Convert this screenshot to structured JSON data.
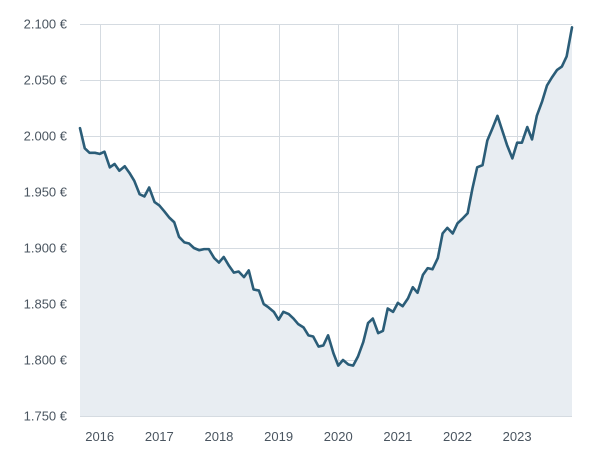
{
  "chart_data": {
    "type": "area",
    "title": "",
    "xlabel": "",
    "ylabel": "",
    "ylim": [
      1750,
      2100
    ],
    "y_ticks": [
      1750,
      1800,
      1850,
      1900,
      1950,
      2000,
      2050,
      2100
    ],
    "y_tick_labels": [
      "1.750 €",
      "1.800 €",
      "1.850 €",
      "1.900 €",
      "1.950 €",
      "2.000 €",
      "2.050 €",
      "2.100 €"
    ],
    "x_ticks": [
      2016,
      2017,
      2018,
      2019,
      2020,
      2021,
      2022,
      2023
    ],
    "x_tick_labels": [
      "2016",
      "2017",
      "2018",
      "2019",
      "2020",
      "2021",
      "2022",
      "2023"
    ],
    "xlim": [
      2015.67,
      2023.92
    ],
    "grid": true,
    "colors": {
      "line": "#2b5d78",
      "fill": "#e8edf2",
      "grid": "#d5dbe1",
      "text": "#4a5560"
    },
    "series": [
      {
        "x": [
          2015.67,
          2015.75,
          2015.83,
          2015.92,
          2016.0,
          2016.08,
          2016.17,
          2016.25,
          2016.33,
          2016.42,
          2016.5,
          2016.58,
          2016.67,
          2016.75,
          2016.83,
          2016.92,
          2017.0,
          2017.08,
          2017.17,
          2017.25,
          2017.33,
          2017.42,
          2017.5,
          2017.58,
          2017.67,
          2017.75,
          2017.83,
          2017.92,
          2018.0,
          2018.08,
          2018.17,
          2018.25,
          2018.33,
          2018.42,
          2018.5,
          2018.58,
          2018.67,
          2018.75,
          2018.83,
          2018.92,
          2019.0,
          2019.08,
          2019.17,
          2019.25,
          2019.33,
          2019.42,
          2019.5,
          2019.58,
          2019.67,
          2019.75,
          2019.83,
          2019.92,
          2020.0,
          2020.08,
          2020.17,
          2020.25,
          2020.33,
          2020.42,
          2020.5,
          2020.58,
          2020.67,
          2020.75,
          2020.83,
          2020.92,
          2021.0,
          2021.08,
          2021.17,
          2021.25,
          2021.33,
          2021.42,
          2021.5,
          2021.58,
          2021.67,
          2021.75,
          2021.83,
          2021.92,
          2022.0,
          2022.08,
          2022.17,
          2022.25,
          2022.33,
          2022.42,
          2022.5,
          2022.58,
          2022.67,
          2022.75,
          2022.83,
          2022.92,
          2023.0,
          2023.08,
          2023.17,
          2023.25,
          2023.33,
          2023.42,
          2023.5,
          2023.58,
          2023.67,
          2023.75,
          2023.83,
          2023.92
        ],
        "values": [
          2007,
          1989,
          1985,
          1985,
          1984,
          1986,
          1972,
          1975,
          1969,
          1973,
          1967,
          1960,
          1948,
          1946,
          1954,
          1941,
          1938,
          1933,
          1927,
          1923,
          1910,
          1905,
          1904,
          1900,
          1898,
          1899,
          1899,
          1891,
          1887,
          1892,
          1884,
          1878,
          1879,
          1874,
          1880,
          1863,
          1862,
          1850,
          1847,
          1843,
          1836,
          1843,
          1841,
          1837,
          1832,
          1829,
          1822,
          1821,
          1812,
          1813,
          1822,
          1806,
          1795,
          1800,
          1796,
          1795,
          1803,
          1816,
          1833,
          1837,
          1824,
          1826,
          1846,
          1843,
          1851,
          1848,
          1855,
          1865,
          1860,
          1876,
          1882,
          1881,
          1891,
          1913,
          1918,
          1913,
          1922,
          1926,
          1931,
          1953,
          1972,
          1974,
          1996,
          2006,
          2018,
          2005,
          1992,
          1980,
          1994,
          1994,
          2008,
          1997,
          2018,
          2031,
          2045,
          2052,
          2059,
          2062,
          2071,
          2097
        ]
      }
    ]
  }
}
